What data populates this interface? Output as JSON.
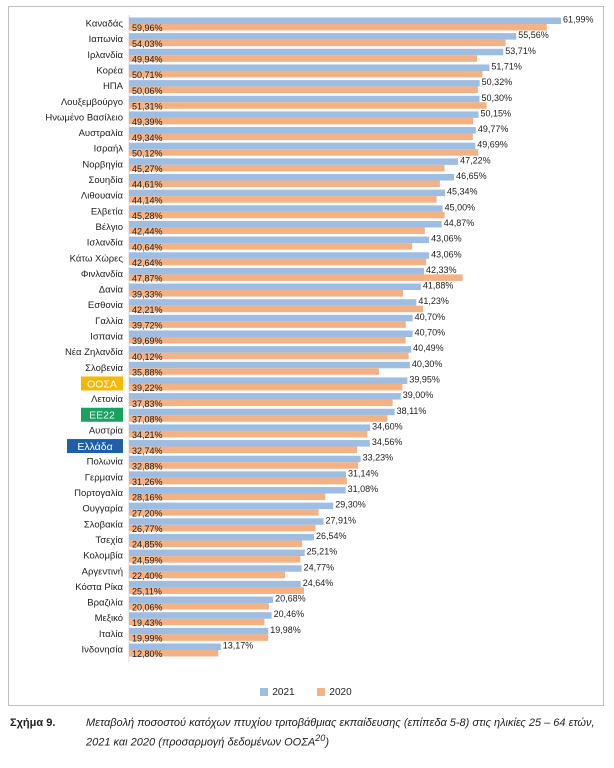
{
  "chart_data": {
    "type": "bar",
    "orientation": "horizontal",
    "categories": [
      "Καναδάς",
      "Ιαπωνία",
      "Ιρλανδία",
      "Κορέα",
      "ΗΠΑ",
      "Λουξεμβούργο",
      "Ηνωμένο Βασίλειο",
      "Αυστραλία",
      "Ισραήλ",
      "Νορβηγία",
      "Σουηδία",
      "Λιθουανία",
      "Ελβετία",
      "Βέλγιο",
      "Ισλανδία",
      "Κάτω Χώρες",
      "Φινλανδία",
      "Δανία",
      "Εσθονία",
      "Γαλλία",
      "Ισπανία",
      "Νέα Ζηλανδία",
      "Σλοβενία",
      "ΟΟΣΑ",
      "Λετονία",
      "ΕΕ22",
      "Αυστρία",
      "Ελλάδα",
      "Πολωνία",
      "Γερμανία",
      "Πορτογαλία",
      "Ουγγαρία",
      "Σλοβακία",
      "Τσεχία",
      "Κολομβία",
      "Αργεντινή",
      "Κόστα Ρίκα",
      "Βραζιλία",
      "Μεξικό",
      "Ιταλία",
      "Ινδονησία"
    ],
    "series": [
      {
        "name": "2021",
        "color": "#9dbde3",
        "values": [
          61.99,
          55.56,
          53.71,
          51.71,
          50.32,
          50.3,
          50.15,
          49.77,
          49.69,
          47.22,
          46.65,
          45.34,
          45.0,
          44.87,
          43.06,
          43.06,
          42.33,
          41.88,
          41.23,
          40.7,
          40.7,
          40.49,
          40.3,
          39.95,
          39.0,
          38.11,
          34.6,
          34.56,
          33.23,
          31.14,
          31.08,
          29.3,
          27.91,
          26.54,
          25.21,
          24.77,
          24.64,
          20.68,
          20.46,
          19.98,
          13.17
        ],
        "labels": [
          "61,99%",
          "55,56%",
          "53,71%",
          "51,71%",
          "50,32%",
          "50,30%",
          "50,15%",
          "49,77%",
          "49,69%",
          "47,22%",
          "46,65%",
          "45,34%",
          "45,00%",
          "44,87%",
          "43,06%",
          "43,06%",
          "42,33%",
          "41,88%",
          "41,23%",
          "40,70%",
          "40,70%",
          "40,49%",
          "40,30%",
          "39,95%",
          "39,00%",
          "38,11%",
          "34,60%",
          "34,56%",
          "33,23%",
          "31,14%",
          "31,08%",
          "29,30%",
          "27,91%",
          "26,54%",
          "25,21%",
          "24,77%",
          "24,64%",
          "20,68%",
          "20,46%",
          "19,98%",
          "13,17%"
        ]
      },
      {
        "name": "2020",
        "color": "#f4b183",
        "values": [
          59.96,
          54.03,
          49.94,
          50.71,
          50.06,
          51.31,
          49.39,
          49.34,
          50.12,
          45.27,
          44.61,
          44.14,
          45.28,
          42.44,
          40.64,
          42.64,
          47.87,
          39.33,
          42.21,
          39.72,
          39.69,
          40.12,
          35.88,
          39.22,
          37.83,
          37.08,
          34.21,
          32.74,
          32.88,
          31.26,
          28.16,
          27.2,
          26.77,
          24.85,
          24.59,
          22.4,
          25.11,
          20.06,
          19.43,
          19.99,
          12.8
        ],
        "labels": [
          "59,96%",
          "54,03%",
          "49,94%",
          "50,71%",
          "50,06%",
          "51,31%",
          "49,39%",
          "49,34%",
          "50,12%",
          "45,27%",
          "44,61%",
          "44,14%",
          "45,28%",
          "42,44%",
          "40,64%",
          "42,64%",
          "47,87%",
          "39,33%",
          "42,21%",
          "39,72%",
          "39,69%",
          "40,12%",
          "35,88%",
          "39,22%",
          "37,83%",
          "37,08%",
          "34,21%",
          "32,74%",
          "32,88%",
          "31,26%",
          "28,16%",
          "27,20%",
          "26,77%",
          "24,85%",
          "24,59%",
          "22,40%",
          "25,11%",
          "20,06%",
          "19,43%",
          "19,99%",
          "12,80%"
        ]
      }
    ],
    "highlighted_categories": {
      "ΟΟΣΑ": {
        "bg": "#f5b800",
        "text": "#222222"
      },
      "ΕΕ22": {
        "bg": "#1aa15f",
        "text": "#ffffff"
      },
      "Ελλάδα": {
        "bg": "#1f5fa8",
        "text": "#ffffff"
      }
    },
    "xlim": [
      0,
      65
    ],
    "grid": false,
    "legend_position": "bottom",
    "title": "",
    "xlabel": "",
    "ylabel": ""
  },
  "legend": {
    "items": [
      {
        "label": "2021",
        "color": "#9dbde3"
      },
      {
        "label": "2020",
        "color": "#f4b183"
      }
    ]
  },
  "caption": {
    "figure_number": "Σχήμα 9.",
    "text": "Μεταβολή ποσοστού κατόχων πτυχίου τριτοβάθμιας εκπαίδευσης (επίπεδα 5-8) στις ηλικίες 25 – 64 ετών, 2021 και 2020 (προσαρμογή δεδομένων ΟΟΣΑ",
    "footnote_mark": "20",
    "text_end": ")"
  }
}
